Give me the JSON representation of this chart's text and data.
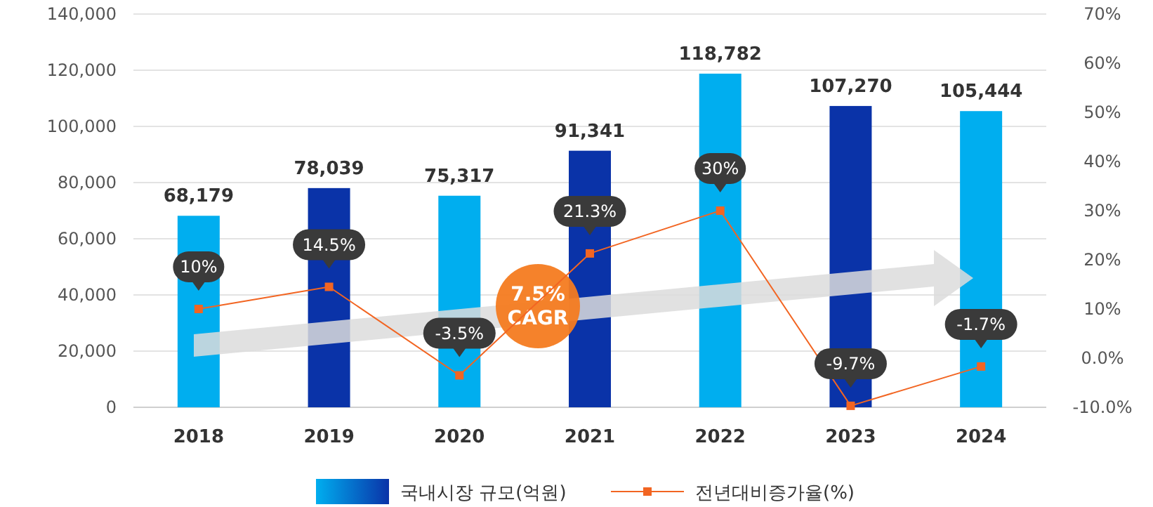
{
  "chart_data": {
    "type": "bar",
    "categories": [
      "2018",
      "2019",
      "2020",
      "2021",
      "2022",
      "2023",
      "2024"
    ],
    "series": [
      {
        "name": "국내시장 규모(억원)",
        "colors": [
          "#00aeef",
          "#0a33a8",
          "#00aeef",
          "#0a33a8",
          "#00aeef",
          "#0a33a8",
          "#00aeef"
        ],
        "values": [
          68179,
          78039,
          75317,
          91341,
          118782,
          107270,
          105444
        ],
        "value_labels": [
          "68,179",
          "78,039",
          "75,317",
          "91,341",
          "118,782",
          "107,270",
          "105,444"
        ]
      },
      {
        "name": "전년대비증가율(%)",
        "type": "line",
        "axis": "y2",
        "color": "#f26522",
        "values": [
          10,
          14.5,
          -3.5,
          21.3,
          30,
          -9.7,
          -1.7
        ],
        "value_labels": [
          "10%",
          "14.5%",
          "-3.5%",
          "21.3%",
          "30%",
          "-9.7%",
          "-1.7%"
        ]
      }
    ],
    "ylim": [
      0,
      140000
    ],
    "yticks": [
      0,
      {
        "value": 20000,
        "label": "20,000"
      },
      {
        "value": 40000,
        "label": "40,000"
      },
      {
        "value": 60000,
        "label": "60,000"
      },
      {
        "value": 80000,
        "label": "80,000"
      },
      {
        "value": 100000,
        "label": "100,000"
      },
      {
        "value": 120000,
        "label": "120,000"
      },
      {
        "value": 140000,
        "label": "140,000"
      }
    ],
    "y2lim": [
      -10,
      70
    ],
    "y2ticks": [
      {
        "value": -10,
        "label": "-10.0%"
      },
      {
        "value": 0,
        "label": "0.0%"
      },
      {
        "value": 10,
        "label": "10%"
      },
      {
        "value": 20,
        "label": "20%"
      },
      {
        "value": 30,
        "label": "30%"
      },
      {
        "value": 40,
        "label": "40%"
      },
      {
        "value": 50,
        "label": "50%"
      },
      {
        "value": 60,
        "label": "60%"
      },
      {
        "value": 70,
        "label": "70%"
      }
    ],
    "grid": "y",
    "legend": "bottom",
    "marker": "square",
    "annotations": [
      "7.5% CAGR"
    ]
  }
}
